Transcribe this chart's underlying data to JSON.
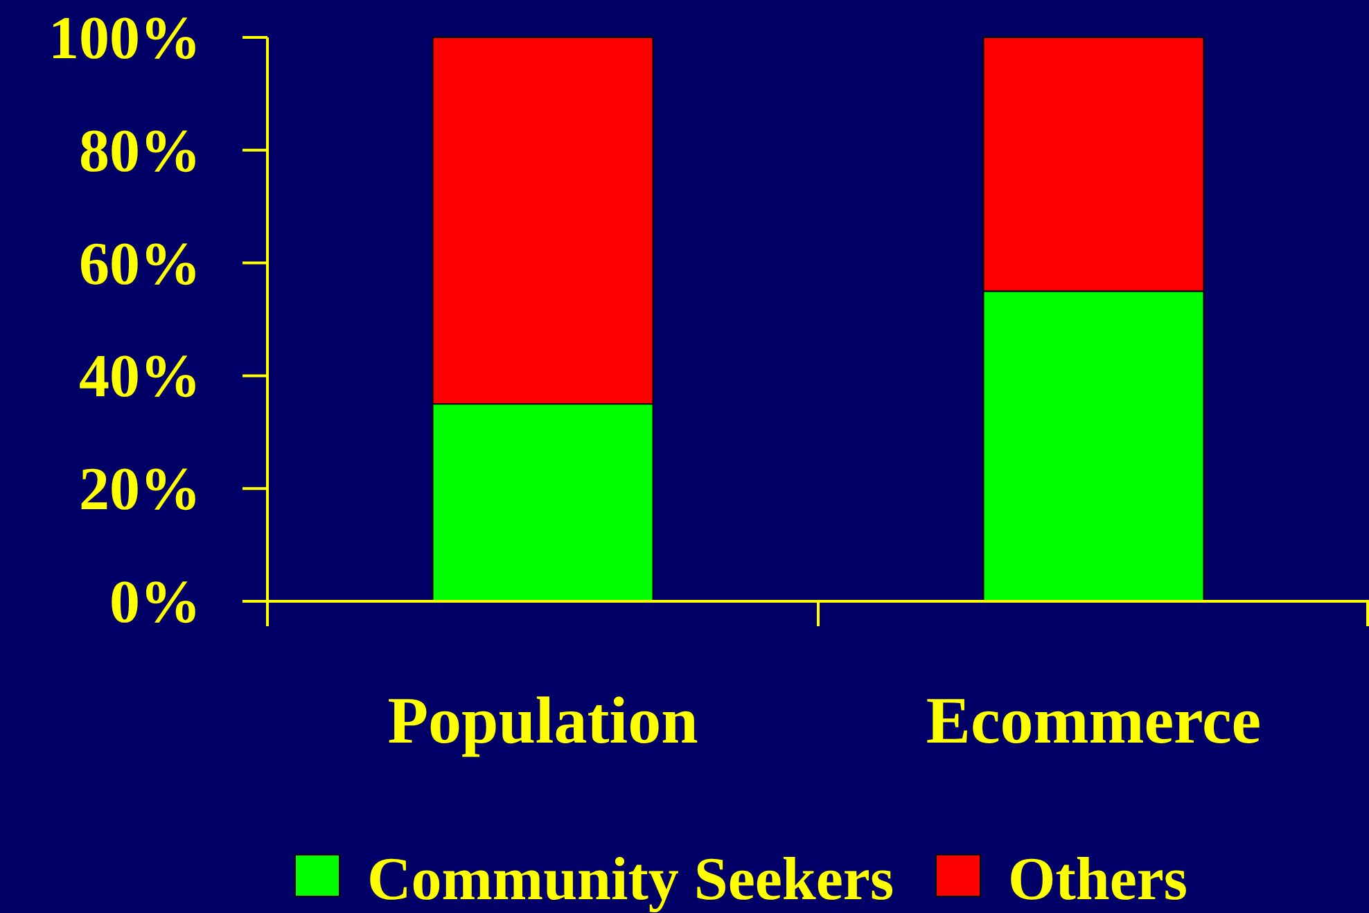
{
  "chart_data": {
    "type": "bar",
    "stacked": true,
    "categories": [
      "Population",
      "Ecommerce"
    ],
    "series": [
      {
        "name": "Community Seekers",
        "color": "#00ff00",
        "values": [
          35,
          55
        ]
      },
      {
        "name": "Others",
        "color": "#ff0000",
        "values": [
          65,
          45
        ]
      }
    ],
    "ylim": [
      0,
      100
    ],
    "yticks": [
      {
        "value": 0,
        "label": "0%"
      },
      {
        "value": 20,
        "label": "20%"
      },
      {
        "value": 40,
        "label": "40%"
      },
      {
        "value": 60,
        "label": "60%"
      },
      {
        "value": 80,
        "label": "80%"
      },
      {
        "value": 100,
        "label": "100%"
      }
    ],
    "grid": false,
    "legend": "bottom"
  }
}
